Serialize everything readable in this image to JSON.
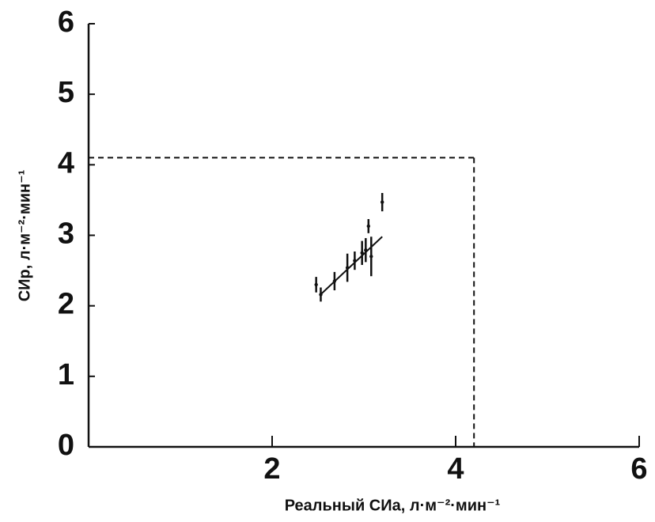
{
  "chart_data": {
    "type": "scatter",
    "x_label": "Реальный СИа, л·м⁻²·мин⁻¹",
    "y_label": "СИр, л·м⁻²·мин⁻¹",
    "x": [
      2.48,
      2.53,
      2.68,
      2.82,
      2.9,
      2.98,
      3.02,
      3.05,
      3.08,
      3.2
    ],
    "values": [
      2.3,
      2.16,
      2.35,
      2.54,
      2.64,
      2.75,
      2.79,
      3.13,
      2.7,
      3.47
    ],
    "errors": [
      0.11,
      0.1,
      0.13,
      0.2,
      0.13,
      0.17,
      0.17,
      0.1,
      0.28,
      0.13
    ],
    "fit_line": {
      "x": [
        2.52,
        3.2
      ],
      "values": [
        2.15,
        2.98
      ]
    },
    "reference": {
      "x": 4.2,
      "y": 4.1
    },
    "color": "#111111",
    "xlim": [
      0,
      6
    ],
    "xticks": [
      2,
      4,
      6
    ],
    "ylim": [
      0,
      6
    ],
    "yticks": [
      0,
      1,
      2,
      3,
      4,
      5,
      6
    ]
  }
}
